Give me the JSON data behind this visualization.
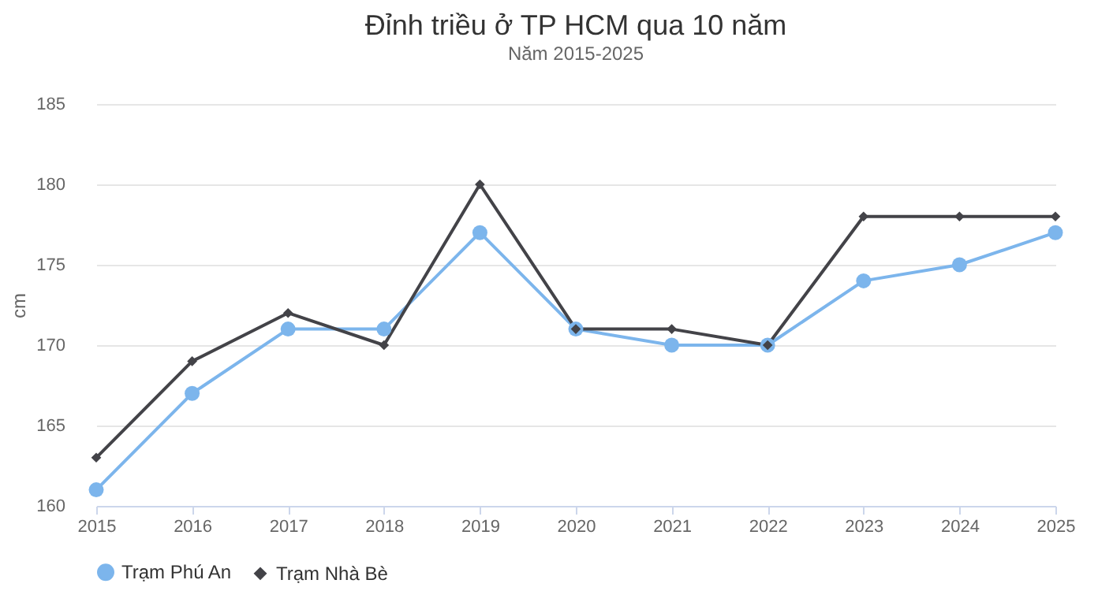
{
  "chart_data": {
    "type": "line",
    "title": "Đỉnh triều ở TP HCM qua 10 năm",
    "subtitle": "Năm 2015-2025",
    "ylabel": "cm",
    "x": [
      2015,
      2016,
      2017,
      2018,
      2019,
      2020,
      2021,
      2022,
      2023,
      2024,
      2025
    ],
    "xlim": [
      2015,
      2025
    ],
    "xticks": [
      2015,
      2016,
      2017,
      2018,
      2019,
      2020,
      2021,
      2022,
      2023,
      2024,
      2025
    ],
    "ylim": [
      160,
      185
    ],
    "yticks": [
      160,
      165,
      170,
      175,
      180,
      185
    ],
    "grid": "y",
    "legend": "bottom",
    "series": [
      {
        "name": "Trạm Phú An",
        "color": "#7cb5ec",
        "marker": "circle",
        "values": [
          161,
          167,
          171,
          171,
          177,
          171,
          170,
          170,
          174,
          175,
          177
        ]
      },
      {
        "name": "Trạm Nhà Bè",
        "color": "#434348",
        "marker": "diamond",
        "values": [
          163,
          169,
          172,
          170,
          180,
          171,
          171,
          170,
          178,
          178,
          178
        ]
      }
    ]
  }
}
